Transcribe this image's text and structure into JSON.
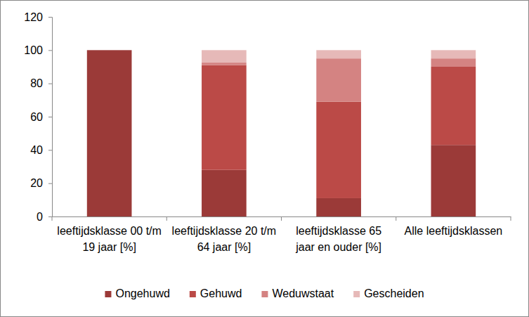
{
  "chart_data": {
    "type": "bar",
    "stacked": true,
    "legend": "bottom",
    "categories": [
      "leeftijdsklasse 00 t/m 19 jaar [%]",
      "leeftijdsklasse 20 t/m 64 jaar [%]",
      "leeftijdsklasse 65 jaar en ouder [%]",
      "Alle leeftijdsklassen"
    ],
    "series": [
      {
        "name": "Ongehuwd",
        "color": "#9b3a38",
        "values": [
          100,
          28,
          11,
          43
        ]
      },
      {
        "name": "Gehuwd",
        "color": "#bb4a47",
        "values": [
          0,
          63,
          58,
          47
        ]
      },
      {
        "name": "Weduwstaat",
        "color": "#d48382",
        "values": [
          0,
          1.5,
          26,
          5
        ]
      },
      {
        "name": "Gescheiden",
        "color": "#e6b9b8",
        "values": [
          0,
          7.5,
          5,
          5
        ]
      }
    ],
    "ylim": [
      0,
      120
    ],
    "yticks": [
      0,
      20,
      40,
      60,
      80,
      100,
      120
    ],
    "grid": false
  }
}
